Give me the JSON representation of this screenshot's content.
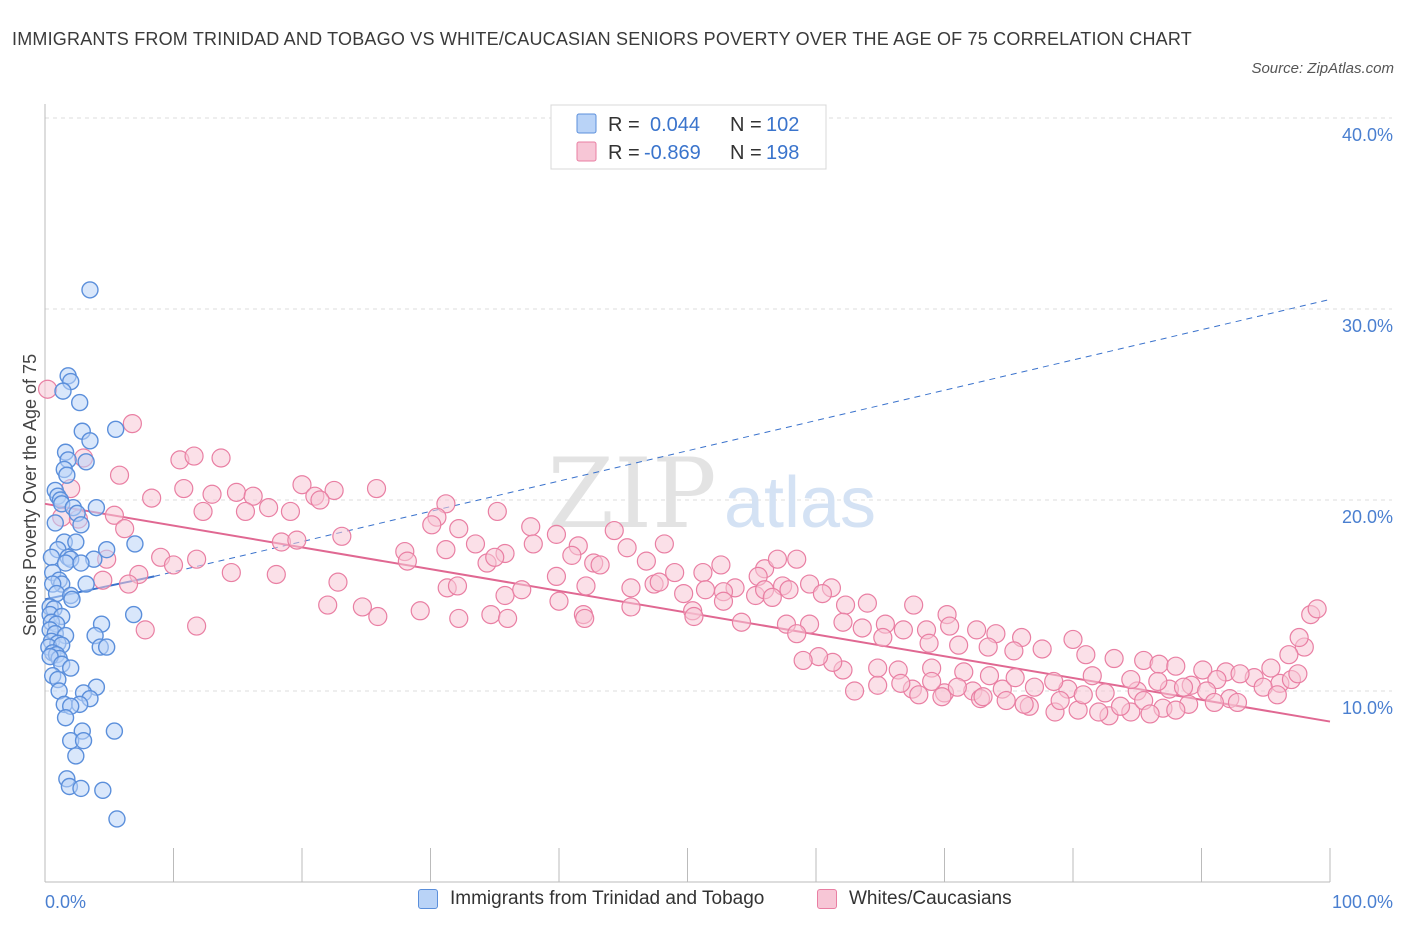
{
  "title": "IMMIGRANTS FROM TRINIDAD AND TOBAGO VS WHITE/CAUCASIAN SENIORS POVERTY OVER THE AGE OF 75 CORRELATION CHART",
  "source": "Source: ZipAtlas.com",
  "watermark": {
    "zip": "ZIP",
    "atlas": "atlas"
  },
  "legend": {
    "r_label": "R =",
    "n_label": "N =",
    "rows": [
      {
        "r": "0.044",
        "n": "102"
      },
      {
        "r": "-0.869",
        "n": "198"
      }
    ]
  },
  "colors": {
    "blue": "#5b8fdb",
    "blue_fill": "#b9d3f7",
    "pink": "#e97fa3",
    "pink_fill": "#f7c6d6",
    "blue_line": "#3a72cc",
    "pink_line": "#e06892",
    "grid": "#dcdcdc",
    "tick_text": "#4a7fd0"
  },
  "chart_data": {
    "type": "scatter",
    "ylabel": "Seniors Poverty Over the Age of 75",
    "xlim": [
      0,
      100
    ],
    "ylim": [
      0,
      40
    ],
    "x_tick_labels": [
      "0.0%",
      "100.0%"
    ],
    "y_ticks": [
      10,
      20,
      30,
      40
    ],
    "y_tick_labels": [
      "10.0%",
      "20.0%",
      "30.0%",
      "40.0%"
    ],
    "grid": true,
    "legend_position": "top-center",
    "series": [
      {
        "name": "Immigrants from Trinidad and Tobago",
        "color": "#5b8fdb",
        "trend": {
          "x": [
            0,
            8.5,
            100
          ],
          "y": [
            14.8,
            16.0,
            30.5
          ],
          "solid_until": 8.5
        },
        "points": [
          [
            3.5,
            31.0
          ],
          [
            1.8,
            26.5
          ],
          [
            2.0,
            26.2
          ],
          [
            1.4,
            25.7
          ],
          [
            2.7,
            25.1
          ],
          [
            2.9,
            23.6
          ],
          [
            5.5,
            23.7
          ],
          [
            3.5,
            23.1
          ],
          [
            1.6,
            22.5
          ],
          [
            1.8,
            22.1
          ],
          [
            3.2,
            22.0
          ],
          [
            1.5,
            21.6
          ],
          [
            1.7,
            21.3
          ],
          [
            0.8,
            20.5
          ],
          [
            1.0,
            20.2
          ],
          [
            1.2,
            20.0
          ],
          [
            1.3,
            19.8
          ],
          [
            4.0,
            19.6
          ],
          [
            2.2,
            19.6
          ],
          [
            2.5,
            19.3
          ],
          [
            0.8,
            18.8
          ],
          [
            2.8,
            18.7
          ],
          [
            1.5,
            17.8
          ],
          [
            2.4,
            17.8
          ],
          [
            7.0,
            17.7
          ],
          [
            4.8,
            17.4
          ],
          [
            1.0,
            17.4
          ],
          [
            0.5,
            17.0
          ],
          [
            1.8,
            17.0
          ],
          [
            2.0,
            16.9
          ],
          [
            3.8,
            16.9
          ],
          [
            1.6,
            16.7
          ],
          [
            2.8,
            16.7
          ],
          [
            0.6,
            16.2
          ],
          [
            1.1,
            15.8
          ],
          [
            1.3,
            15.6
          ],
          [
            0.6,
            15.6
          ],
          [
            3.2,
            15.6
          ],
          [
            0.9,
            15.1
          ],
          [
            2.0,
            15.0
          ],
          [
            2.1,
            14.8
          ],
          [
            0.4,
            14.4
          ],
          [
            0.7,
            14.3
          ],
          [
            0.4,
            14.0
          ],
          [
            1.3,
            13.9
          ],
          [
            6.9,
            14.0
          ],
          [
            0.5,
            13.6
          ],
          [
            0.9,
            13.5
          ],
          [
            4.4,
            13.5
          ],
          [
            0.4,
            13.2
          ],
          [
            0.8,
            13.0
          ],
          [
            1.6,
            12.9
          ],
          [
            3.9,
            12.9
          ],
          [
            0.5,
            12.6
          ],
          [
            1.0,
            12.5
          ],
          [
            0.3,
            12.3
          ],
          [
            1.3,
            12.4
          ],
          [
            4.3,
            12.3
          ],
          [
            4.8,
            12.3
          ],
          [
            0.6,
            12.0
          ],
          [
            0.9,
            11.9
          ],
          [
            1.1,
            11.7
          ],
          [
            0.4,
            11.8
          ],
          [
            1.3,
            11.4
          ],
          [
            2.0,
            11.2
          ],
          [
            0.6,
            10.8
          ],
          [
            1.0,
            10.6
          ],
          [
            4.0,
            10.2
          ],
          [
            1.1,
            10.0
          ],
          [
            3.0,
            9.9
          ],
          [
            3.5,
            9.6
          ],
          [
            1.5,
            9.3
          ],
          [
            2.7,
            9.3
          ],
          [
            2.0,
            9.2
          ],
          [
            1.6,
            8.6
          ],
          [
            2.9,
            7.9
          ],
          [
            5.4,
            7.9
          ],
          [
            2.0,
            7.4
          ],
          [
            3.0,
            7.4
          ],
          [
            2.4,
            6.6
          ],
          [
            1.7,
            5.4
          ],
          [
            1.9,
            5.0
          ],
          [
            2.8,
            4.9
          ],
          [
            4.5,
            4.8
          ],
          [
            5.6,
            3.3
          ]
        ]
      },
      {
        "name": "Whites/Caucasians",
        "color": "#e97fa3",
        "trend": {
          "x": [
            0,
            100
          ],
          "y": [
            19.8,
            8.4
          ]
        },
        "points": [
          [
            0.2,
            25.8
          ],
          [
            6.8,
            24.0
          ],
          [
            3.0,
            22.2
          ],
          [
            10.5,
            22.1
          ],
          [
            11.6,
            22.3
          ],
          [
            13.7,
            22.2
          ],
          [
            5.8,
            21.3
          ],
          [
            2.0,
            20.6
          ],
          [
            10.8,
            20.6
          ],
          [
            13.0,
            20.3
          ],
          [
            14.9,
            20.4
          ],
          [
            16.2,
            20.2
          ],
          [
            20.0,
            20.8
          ],
          [
            21.0,
            20.2
          ],
          [
            22.5,
            20.5
          ],
          [
            25.8,
            20.6
          ],
          [
            8.3,
            20.1
          ],
          [
            12.3,
            19.4
          ],
          [
            15.6,
            19.4
          ],
          [
            17.4,
            19.6
          ],
          [
            19.1,
            19.4
          ],
          [
            21.4,
            20.0
          ],
          [
            31.2,
            19.8
          ],
          [
            30.5,
            19.1
          ],
          [
            35.2,
            19.4
          ],
          [
            1.3,
            19.1
          ],
          [
            2.6,
            19.0
          ],
          [
            5.4,
            19.2
          ],
          [
            6.2,
            18.5
          ],
          [
            18.4,
            17.8
          ],
          [
            19.6,
            17.9
          ],
          [
            23.1,
            18.1
          ],
          [
            28.0,
            17.3
          ],
          [
            30.1,
            18.7
          ],
          [
            32.2,
            18.5
          ],
          [
            33.5,
            17.7
          ],
          [
            37.8,
            18.6
          ],
          [
            35.8,
            17.2
          ],
          [
            38.0,
            17.7
          ],
          [
            39.8,
            18.2
          ],
          [
            41.5,
            17.6
          ],
          [
            41.0,
            17.1
          ],
          [
            44.3,
            18.4
          ],
          [
            45.3,
            17.5
          ],
          [
            48.2,
            17.7
          ],
          [
            42.7,
            16.7
          ],
          [
            46.8,
            16.8
          ],
          [
            49.0,
            16.2
          ],
          [
            51.2,
            16.2
          ],
          [
            52.6,
            16.6
          ],
          [
            56.0,
            16.4
          ],
          [
            57.0,
            16.9
          ],
          [
            58.5,
            16.9
          ],
          [
            9.0,
            17.0
          ],
          [
            11.8,
            16.9
          ],
          [
            4.8,
            16.9
          ],
          [
            10.0,
            16.6
          ],
          [
            14.5,
            16.2
          ],
          [
            18.0,
            16.1
          ],
          [
            28.2,
            16.8
          ],
          [
            31.2,
            17.4
          ],
          [
            34.4,
            16.7
          ],
          [
            35.0,
            17.0
          ],
          [
            39.8,
            16.0
          ],
          [
            43.2,
            16.6
          ],
          [
            47.4,
            15.6
          ],
          [
            53.7,
            15.4
          ],
          [
            55.5,
            16.0
          ],
          [
            7.3,
            16.1
          ],
          [
            4.5,
            15.8
          ],
          [
            6.5,
            15.6
          ],
          [
            22.8,
            15.7
          ],
          [
            31.3,
            15.4
          ],
          [
            32.1,
            15.5
          ],
          [
            35.8,
            15.0
          ],
          [
            37.1,
            15.3
          ],
          [
            42.1,
            15.5
          ],
          [
            45.6,
            15.4
          ],
          [
            47.8,
            15.7
          ],
          [
            49.7,
            15.1
          ],
          [
            51.4,
            15.3
          ],
          [
            52.8,
            15.2
          ],
          [
            55.3,
            15.0
          ],
          [
            57.4,
            15.5
          ],
          [
            57.9,
            15.3
          ],
          [
            59.5,
            15.6
          ],
          [
            61.2,
            15.4
          ],
          [
            22.0,
            14.5
          ],
          [
            24.7,
            14.4
          ],
          [
            29.2,
            14.2
          ],
          [
            34.7,
            14.0
          ],
          [
            40.0,
            14.7
          ],
          [
            41.9,
            14.0
          ],
          [
            45.6,
            14.4
          ],
          [
            50.4,
            14.2
          ],
          [
            52.8,
            14.7
          ],
          [
            56.0,
            15.3
          ],
          [
            56.6,
            14.9
          ],
          [
            60.5,
            15.1
          ],
          [
            62.3,
            14.5
          ],
          [
            64.0,
            14.6
          ],
          [
            67.6,
            14.5
          ],
          [
            70.2,
            14.0
          ],
          [
            25.9,
            13.9
          ],
          [
            32.2,
            13.8
          ],
          [
            36.0,
            13.8
          ],
          [
            11.8,
            13.4
          ],
          [
            7.8,
            13.2
          ],
          [
            42.0,
            13.8
          ],
          [
            50.5,
            13.9
          ],
          [
            54.2,
            13.6
          ],
          [
            57.7,
            13.5
          ],
          [
            59.5,
            13.5
          ],
          [
            62.1,
            13.6
          ],
          [
            63.6,
            13.3
          ],
          [
            65.4,
            13.5
          ],
          [
            66.8,
            13.2
          ],
          [
            68.6,
            13.2
          ],
          [
            70.4,
            13.4
          ],
          [
            72.5,
            13.2
          ],
          [
            74.0,
            13.0
          ],
          [
            76.0,
            12.8
          ],
          [
            80.0,
            12.7
          ],
          [
            58.5,
            13.0
          ],
          [
            65.2,
            12.8
          ],
          [
            68.8,
            12.5
          ],
          [
            71.1,
            12.4
          ],
          [
            73.4,
            12.3
          ],
          [
            75.4,
            12.1
          ],
          [
            77.6,
            12.2
          ],
          [
            81.0,
            11.9
          ],
          [
            83.2,
            11.7
          ],
          [
            85.5,
            11.6
          ],
          [
            86.7,
            11.4
          ],
          [
            88.0,
            11.3
          ],
          [
            90.1,
            11.1
          ],
          [
            91.9,
            11.0
          ],
          [
            94.1,
            10.7
          ],
          [
            96.1,
            10.4
          ],
          [
            97.0,
            10.6
          ],
          [
            98.0,
            12.3
          ],
          [
            98.5,
            14.0
          ],
          [
            99.0,
            14.3
          ],
          [
            97.6,
            12.8
          ],
          [
            96.8,
            11.9
          ],
          [
            95.4,
            11.2
          ],
          [
            93.0,
            10.9
          ],
          [
            91.2,
            10.6
          ],
          [
            89.2,
            10.3
          ],
          [
            87.5,
            10.1
          ],
          [
            85.0,
            10.0
          ],
          [
            82.5,
            9.9
          ],
          [
            79.6,
            10.1
          ],
          [
            77.0,
            10.2
          ],
          [
            74.5,
            10.1
          ],
          [
            72.2,
            10.0
          ],
          [
            70.0,
            9.9
          ],
          [
            67.5,
            10.1
          ],
          [
            64.8,
            10.3
          ],
          [
            66.4,
            11.1
          ],
          [
            69.0,
            11.2
          ],
          [
            71.5,
            11.0
          ],
          [
            73.5,
            10.8
          ],
          [
            75.5,
            10.7
          ],
          [
            78.5,
            10.5
          ],
          [
            81.5,
            10.8
          ],
          [
            84.5,
            10.6
          ],
          [
            86.6,
            10.5
          ],
          [
            88.6,
            10.2
          ],
          [
            90.4,
            10.0
          ],
          [
            92.2,
            9.6
          ],
          [
            91.0,
            9.4
          ],
          [
            89.0,
            9.3
          ],
          [
            87.0,
            9.1
          ],
          [
            84.5,
            8.9
          ],
          [
            82.8,
            8.7
          ],
          [
            80.4,
            9.0
          ],
          [
            78.6,
            8.9
          ],
          [
            76.6,
            9.2
          ],
          [
            74.8,
            9.5
          ],
          [
            72.8,
            9.6
          ],
          [
            69.8,
            9.7
          ],
          [
            68.0,
            9.8
          ],
          [
            63.0,
            10.0
          ],
          [
            62.1,
            11.1
          ],
          [
            61.3,
            11.5
          ],
          [
            60.2,
            11.8
          ],
          [
            59.0,
            11.6
          ],
          [
            80.8,
            9.8
          ],
          [
            83.7,
            9.2
          ],
          [
            85.5,
            9.5
          ],
          [
            88.0,
            9.0
          ],
          [
            92.8,
            9.4
          ],
          [
            94.8,
            10.2
          ],
          [
            97.5,
            10.9
          ],
          [
            95.9,
            9.8
          ],
          [
            86.0,
            8.8
          ],
          [
            82.0,
            8.9
          ],
          [
            79.0,
            9.5
          ],
          [
            76.2,
            9.3
          ],
          [
            73.0,
            9.7
          ],
          [
            71.0,
            10.2
          ],
          [
            69.0,
            10.5
          ],
          [
            66.6,
            10.4
          ],
          [
            64.8,
            11.2
          ]
        ]
      }
    ]
  }
}
